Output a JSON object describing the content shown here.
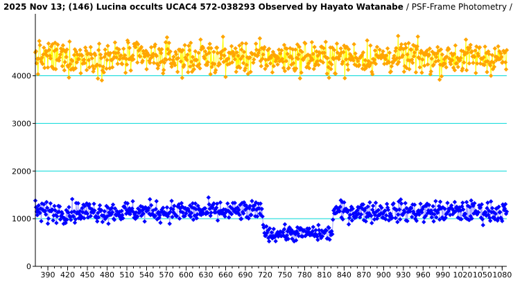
{
  "chart_data": {
    "type": "scatter",
    "title": "2025 Nov 13; (146) Lucina occults UCAC4 572-038293 Observed by Hayato Watanabe",
    "subtitle": "/ PSF-Frame Photometry /",
    "xlabel": "",
    "ylabel": "",
    "xlim": [
      371,
      1087
    ],
    "ylim": [
      0,
      5300
    ],
    "x_ticks": [
      390,
      420,
      450,
      480,
      510,
      540,
      570,
      600,
      630,
      660,
      690,
      720,
      750,
      780,
      810,
      840,
      870,
      900,
      930,
      960,
      990,
      1020,
      1050,
      1080
    ],
    "x_tick_labels": [
      "390",
      "420",
      "450",
      "480",
      "510",
      "540",
      "570",
      "600",
      "630",
      "660",
      "690",
      "720",
      "750",
      "780",
      "810",
      "840",
      "870",
      "900",
      "930",
      "960",
      "990",
      "1020",
      "1050",
      "1080"
    ],
    "y_ticks": [
      0,
      1000,
      2000,
      3000,
      4000
    ],
    "y_tick_labels": [
      "0",
      "1000",
      "2000",
      "3000",
      "4000"
    ],
    "grid": {
      "horizontal": true,
      "vertical": false,
      "color": "#00d8d8"
    },
    "frame_step": 1,
    "x_start": 371,
    "x_end": 1087,
    "series": [
      {
        "color": "#ffa500",
        "line_color": "#ffff00",
        "mean": 4380,
        "noise": 170,
        "segments": [
          {
            "x_from": 371,
            "x_to": 1087,
            "level": 4380
          }
        ]
      },
      {
        "color": "#0000ff",
        "line_color": "#a0a0ff",
        "mean": 1150,
        "noise": 110,
        "segments": [
          {
            "x_from": 371,
            "x_to": 717,
            "level": 1150
          },
          {
            "x_from": 718,
            "x_to": 822,
            "level": 690
          },
          {
            "x_from": 823,
            "x_to": 1087,
            "level": 1150
          }
        ]
      }
    ]
  },
  "colors": {
    "axis": "#000000",
    "grid": "#00d8d8",
    "background": "#ffffff"
  }
}
